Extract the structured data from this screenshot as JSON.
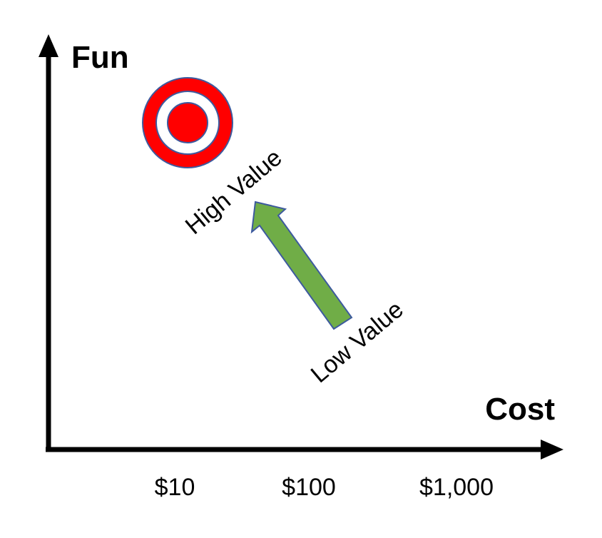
{
  "axes": {
    "y_title": "Fun",
    "x_title": "Cost",
    "x_ticks": [
      "$10",
      "$100",
      "$1,000"
    ]
  },
  "labels": {
    "high": "High Value",
    "low": "Low Value"
  },
  "target": {
    "ring_color": "#ff0000",
    "inner_ring_color": "#ffffff",
    "outline_color": "#3d5a9e"
  },
  "arrow": {
    "direction": "from Low Value toward High Value",
    "fill_color": "#70ad47",
    "outline_color": "#3d5a9e"
  },
  "axis_color": "#000000"
}
